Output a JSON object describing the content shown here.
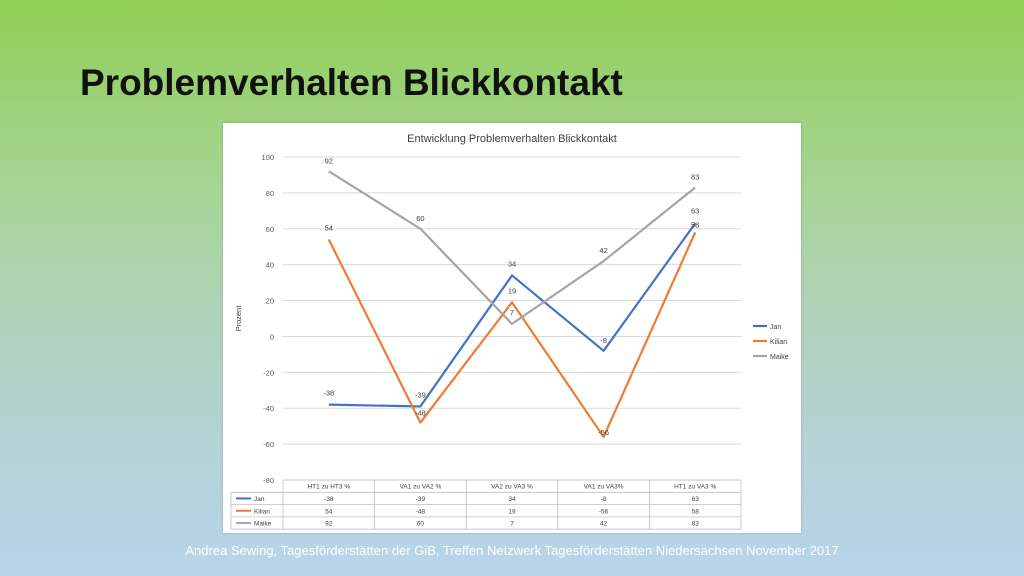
{
  "slide": {
    "title": "Problemverhalten Blickkontakt",
    "footer": "Andrea Sewing, Tagesförderstätten der GiB, Treffen Netzwerk Tagesförderstätten Niedersachsen November 2017"
  },
  "chart_data": {
    "type": "line",
    "title": "Entwicklung Problemverhalten Blickkontakt",
    "xlabel": "",
    "ylabel": "Prozent",
    "ylim": [
      -80,
      100
    ],
    "yticks": [
      100,
      80,
      60,
      40,
      20,
      0,
      -20,
      -40,
      -60,
      -80
    ],
    "categories": [
      "HT1 zu HT3 %",
      "VA1 zu VA2 %",
      "VA2 zu VA3 %",
      "VA1 zu VA3%",
      "HT1 zu VA3 %"
    ],
    "series": [
      {
        "name": "Jan",
        "color": "#4472c4",
        "values": [
          -38,
          -39,
          34,
          -8,
          63
        ]
      },
      {
        "name": "Kilian",
        "color": "#ed7d31",
        "values": [
          54,
          -48,
          19,
          -56,
          58
        ]
      },
      {
        "name": "Maike",
        "color": "#a5a5a5",
        "values": [
          92,
          60,
          7,
          42,
          83
        ]
      }
    ],
    "grid": true,
    "legend": "right",
    "data_table": true
  }
}
